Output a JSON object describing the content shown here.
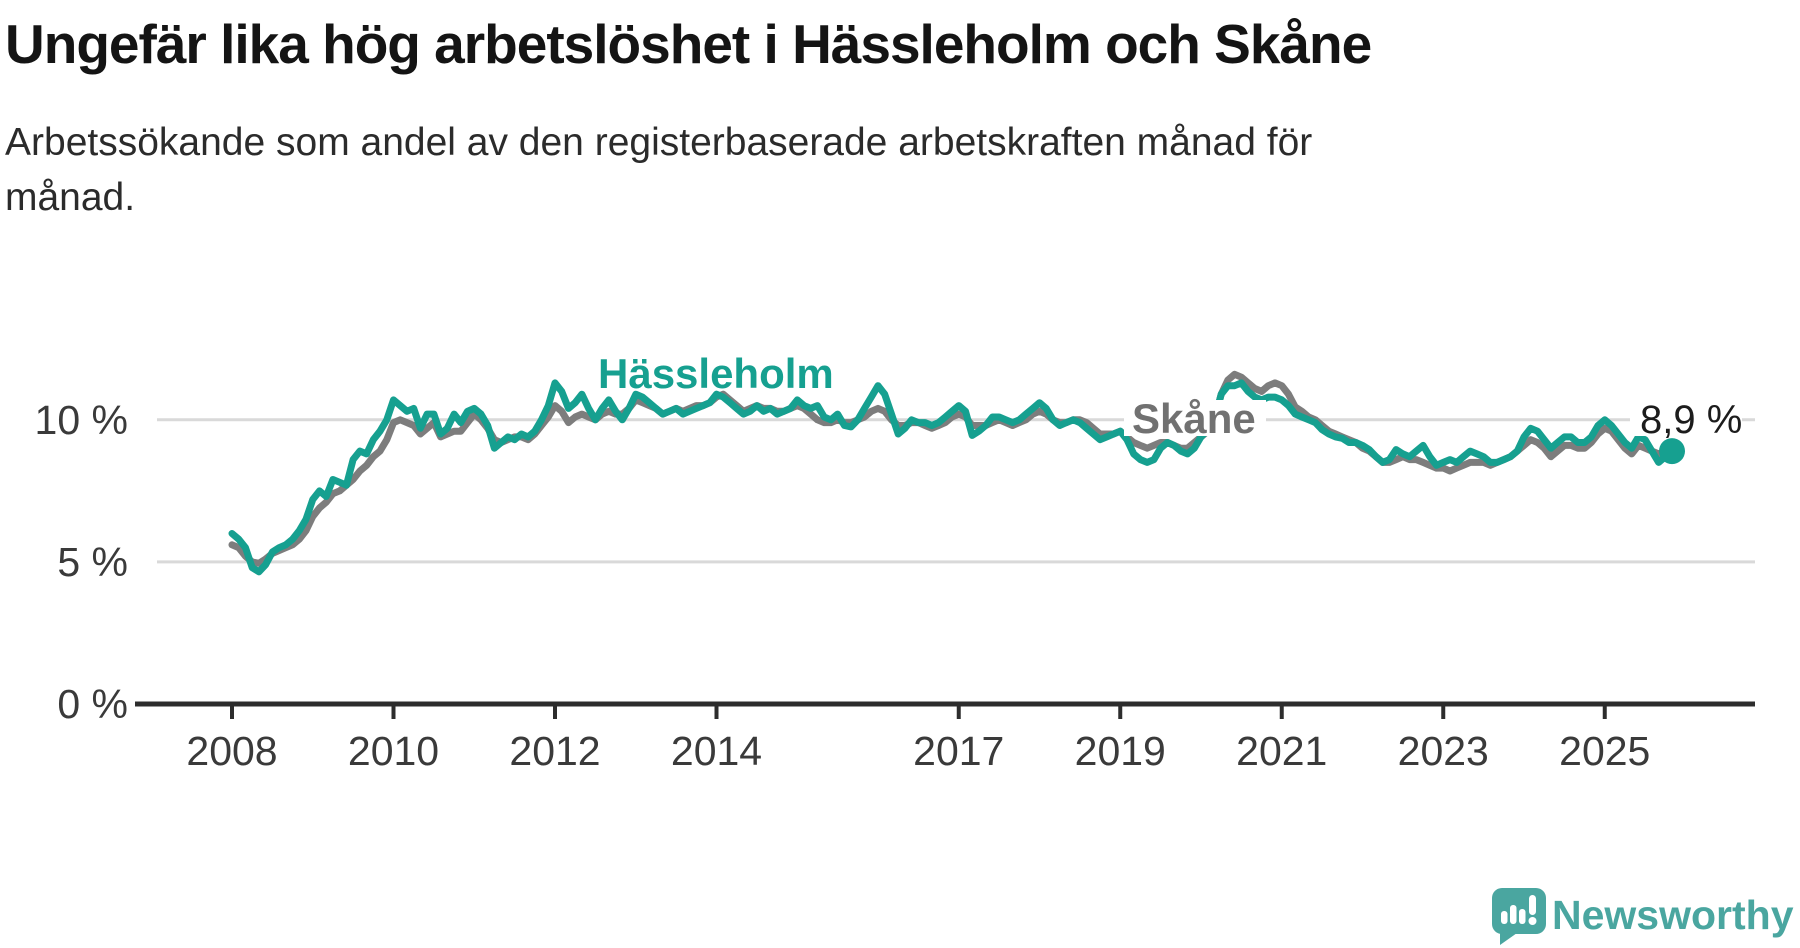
{
  "title": "Ungefär lika hög arbetslöshet i Hässleholm och Skåne",
  "subtitle": "Arbetssökande som andel av den registerbaserade arbetskraften månad för månad.",
  "branding": {
    "name": "Newsworthy"
  },
  "colors": {
    "hassleholm": "#16a090",
    "skane": "#7d7d7d",
    "grid": "#d9d9d9",
    "axis": "#2d2d2d",
    "tick_text": "#3a3a3a",
    "annotation_text": "#1c1c1c",
    "logo": "#4aa6a0"
  },
  "chart_data": {
    "type": "line",
    "title": "Ungefär lika hög arbetslöshet i Hässleholm och Skåne",
    "subtitle": "Arbetssökande som andel av den registerbaserade arbetskraften månad för månad.",
    "unit": "%",
    "frequency": "monthly",
    "x_start": "2008-01",
    "x_end": "2025-11",
    "ylim": [
      0,
      12.4
    ],
    "grid": "horizontal",
    "legend_position": "inline-labels",
    "y_ticks": [
      {
        "value": 10,
        "label": "10 %"
      },
      {
        "value": 5,
        "label": "5 %"
      },
      {
        "value": 0,
        "label": "0 %"
      }
    ],
    "x_ticks": [
      {
        "year": 2008,
        "label": "2008"
      },
      {
        "year": 2010,
        "label": "2010"
      },
      {
        "year": 2012,
        "label": "2012"
      },
      {
        "year": 2014,
        "label": "2014"
      },
      {
        "year": 2017,
        "label": "2017"
      },
      {
        "year": 2019,
        "label": "2019"
      },
      {
        "year": 2021,
        "label": "2021"
      },
      {
        "year": 2023,
        "label": "2023"
      },
      {
        "year": 2025,
        "label": "2025"
      }
    ],
    "series": [
      {
        "name": "Hässleholm",
        "color": "#16a090",
        "values": [
          6.0,
          5.8,
          5.5,
          4.8,
          4.65,
          4.9,
          5.35,
          5.5,
          5.6,
          5.8,
          6.1,
          6.5,
          7.2,
          7.5,
          7.3,
          7.9,
          7.8,
          7.7,
          8.6,
          8.9,
          8.8,
          9.3,
          9.6,
          10.0,
          10.7,
          10.5,
          10.3,
          10.4,
          9.7,
          10.2,
          10.2,
          9.5,
          9.7,
          10.2,
          9.9,
          10.3,
          10.4,
          10.2,
          9.8,
          9.0,
          9.2,
          9.4,
          9.3,
          9.5,
          9.4,
          9.6,
          10.0,
          10.5,
          11.3,
          11.0,
          10.4,
          10.6,
          10.9,
          10.4,
          10.0,
          10.4,
          10.7,
          10.3,
          10.0,
          10.4,
          10.9,
          10.8,
          10.6,
          10.4,
          10.2,
          10.3,
          10.4,
          10.2,
          10.3,
          10.4,
          10.5,
          10.6,
          10.9,
          10.8,
          10.6,
          10.4,
          10.2,
          10.3,
          10.5,
          10.3,
          10.4,
          10.2,
          10.3,
          10.4,
          10.7,
          10.5,
          10.4,
          10.5,
          10.1,
          10.0,
          10.2,
          9.8,
          9.75,
          10.0,
          10.4,
          10.8,
          11.2,
          10.9,
          10.2,
          9.5,
          9.7,
          10.0,
          9.9,
          9.9,
          9.8,
          9.9,
          10.1,
          10.3,
          10.5,
          10.3,
          9.45,
          9.6,
          9.8,
          10.1,
          10.1,
          10.0,
          9.9,
          10.0,
          10.2,
          10.4,
          10.6,
          10.4,
          10.0,
          9.8,
          9.9,
          10.0,
          9.9,
          9.7,
          9.5,
          9.3,
          9.4,
          9.5,
          9.6,
          9.3,
          8.8,
          8.6,
          8.5,
          8.6,
          9.0,
          9.2,
          9.1,
          8.9,
          8.8,
          9.0,
          9.4,
          9.65,
          10.0,
          10.9,
          11.2,
          11.2,
          11.3,
          11.0,
          10.8,
          10.7,
          10.8,
          10.8,
          10.7,
          10.5,
          10.2,
          10.1,
          10.0,
          9.9,
          9.65,
          9.5,
          9.4,
          9.35,
          9.2,
          9.2,
          9.1,
          8.95,
          8.7,
          8.5,
          8.6,
          8.95,
          8.8,
          8.7,
          8.9,
          9.1,
          8.7,
          8.4,
          8.5,
          8.6,
          8.5,
          8.7,
          8.9,
          8.8,
          8.7,
          8.5,
          8.5,
          8.6,
          8.7,
          8.9,
          9.4,
          9.7,
          9.6,
          9.3,
          9.0,
          9.2,
          9.4,
          9.4,
          9.2,
          9.2,
          9.4,
          9.8,
          10.0,
          9.8,
          9.5,
          9.2,
          9.0,
          9.4,
          9.3,
          8.9,
          8.5,
          8.7,
          8.9
        ]
      },
      {
        "name": "Skåne",
        "color": "#7d7d7d",
        "values": [
          5.6,
          5.5,
          5.2,
          5.0,
          4.95,
          5.1,
          5.3,
          5.4,
          5.5,
          5.6,
          5.8,
          6.1,
          6.6,
          6.9,
          7.1,
          7.4,
          7.5,
          7.7,
          7.9,
          8.2,
          8.4,
          8.7,
          8.9,
          9.3,
          9.9,
          10.0,
          9.9,
          9.8,
          9.5,
          9.7,
          9.9,
          9.4,
          9.5,
          9.6,
          9.6,
          9.9,
          10.2,
          10.0,
          9.7,
          9.3,
          9.2,
          9.3,
          9.4,
          9.4,
          9.3,
          9.5,
          9.8,
          10.1,
          10.5,
          10.3,
          9.9,
          10.1,
          10.2,
          10.1,
          10.0,
          10.2,
          10.3,
          10.2,
          10.2,
          10.4,
          10.7,
          10.6,
          10.5,
          10.4,
          10.2,
          10.3,
          10.4,
          10.3,
          10.4,
          10.5,
          10.5,
          10.6,
          10.8,
          10.9,
          10.7,
          10.5,
          10.3,
          10.4,
          10.5,
          10.4,
          10.4,
          10.3,
          10.3,
          10.4,
          10.5,
          10.4,
          10.2,
          10.0,
          9.9,
          9.9,
          10.0,
          9.9,
          9.9,
          10.0,
          10.1,
          10.3,
          10.4,
          10.3,
          10.0,
          9.8,
          9.8,
          9.9,
          9.9,
          9.8,
          9.7,
          9.8,
          9.9,
          10.1,
          10.2,
          10.1,
          9.8,
          9.8,
          9.8,
          9.9,
          10.0,
          9.9,
          9.8,
          9.9,
          10.0,
          10.2,
          10.3,
          10.2,
          10.0,
          9.9,
          9.9,
          10.0,
          10.0,
          9.9,
          9.7,
          9.5,
          9.5,
          9.5,
          9.6,
          9.4,
          9.2,
          9.1,
          9.0,
          9.1,
          9.2,
          9.2,
          9.1,
          9.0,
          9.0,
          9.2,
          9.4,
          9.6,
          10.0,
          10.9,
          11.4,
          11.6,
          11.5,
          11.3,
          11.1,
          11.0,
          11.2,
          11.3,
          11.2,
          10.9,
          10.45,
          10.3,
          10.1,
          10.0,
          9.8,
          9.6,
          9.5,
          9.4,
          9.3,
          9.2,
          9.0,
          8.9,
          8.7,
          8.5,
          8.5,
          8.6,
          8.7,
          8.6,
          8.6,
          8.5,
          8.4,
          8.3,
          8.3,
          8.2,
          8.3,
          8.4,
          8.5,
          8.5,
          8.5,
          8.4,
          8.5,
          8.6,
          8.7,
          8.9,
          9.1,
          9.3,
          9.2,
          9.0,
          8.7,
          8.9,
          9.1,
          9.1,
          9.0,
          9.0,
          9.2,
          9.5,
          9.7,
          9.6,
          9.3,
          9.0,
          8.8,
          9.1,
          9.0,
          8.9,
          8.8,
          8.9,
          9.0
        ]
      }
    ],
    "end_annotation": {
      "series": "Hässleholm",
      "label": "8,9 %",
      "value": 8.9
    }
  }
}
